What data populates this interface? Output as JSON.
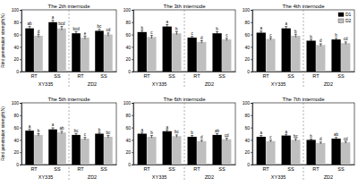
{
  "chart_data": [
    {
      "type": "bar",
      "title": "The 2th internode",
      "ylabel": "Rind penetration strength(N)",
      "categories": [
        "RT",
        "SS",
        "RT",
        "SS"
      ],
      "groups": [
        "XY335",
        "ZD2"
      ],
      "ylim": [
        0,
        100
      ],
      "yticks": [
        0,
        20,
        40,
        60,
        80,
        100
      ],
      "series": [
        {
          "name": "D1",
          "color": "#000000",
          "values": [
            70,
            80,
            62,
            66
          ],
          "errors": [
            3,
            3,
            2.5,
            2.5
          ],
          "letters": [
            "ab",
            "a",
            "bcd",
            "bc"
          ]
        },
        {
          "name": "D2",
          "color": "#bfbfbf",
          "values": [
            58,
            70,
            55,
            60
          ],
          "errors": [
            2.5,
            3,
            2.5,
            2.5
          ],
          "letters": [
            "d",
            "bcd",
            "e",
            "cd"
          ]
        }
      ]
    },
    {
      "type": "bar",
      "title": "The 3th internode",
      "categories": [
        "RT",
        "SS",
        "RT",
        "SS"
      ],
      "groups": [
        "XY335",
        "ZD2"
      ],
      "ylim": [
        0,
        100
      ],
      "yticks": [
        0,
        20,
        40,
        60,
        80,
        100
      ],
      "series": [
        {
          "name": "D1",
          "color": "#000000",
          "values": [
            64,
            73,
            55,
            62
          ],
          "errors": [
            2.5,
            3,
            2,
            2.5
          ],
          "letters": [
            "b",
            "a",
            "c",
            "b"
          ]
        },
        {
          "name": "D2",
          "color": "#bfbfbf",
          "values": [
            56,
            62,
            48,
            52
          ],
          "errors": [
            2.5,
            2.5,
            2,
            2
          ],
          "letters": [
            "c",
            "b",
            "d",
            "c"
          ]
        }
      ]
    },
    {
      "type": "bar",
      "title": "The 4th internode",
      "legend": "upper right",
      "categories": [
        "RT",
        "SS",
        "RT",
        "SS"
      ],
      "groups": [
        "XY335",
        "ZD2"
      ],
      "ylim": [
        0,
        100
      ],
      "yticks": [
        0,
        20,
        40,
        60,
        80,
        100
      ],
      "series": [
        {
          "name": "D1",
          "color": "#000000",
          "values": [
            63,
            70,
            50,
            52
          ],
          "errors": [
            2.5,
            3,
            2,
            2
          ],
          "letters": [
            "a",
            "a",
            "b",
            "b"
          ]
        },
        {
          "name": "D2",
          "color": "#bfbfbf",
          "values": [
            53,
            58,
            43,
            46
          ],
          "errors": [
            2,
            2.5,
            2,
            2
          ],
          "letters": [
            "c",
            "b",
            "d",
            "cd"
          ]
        }
      ]
    },
    {
      "type": "bar",
      "title": "The 5th internode",
      "ylabel": "Rind penetration strength(N)",
      "categories": [
        "RT",
        "SS",
        "RT",
        "SS"
      ],
      "groups": [
        "XY335",
        "ZD2"
      ],
      "ylim": [
        0,
        100
      ],
      "yticks": [
        0,
        20,
        40,
        60,
        80,
        100
      ],
      "series": [
        {
          "name": "D1",
          "color": "#000000",
          "values": [
            55,
            57,
            48,
            50
          ],
          "errors": [
            2.5,
            2.5,
            2,
            2
          ],
          "letters": [
            "a",
            "a",
            "bc",
            "b"
          ]
        },
        {
          "name": "D2",
          "color": "#bfbfbf",
          "values": [
            48,
            52,
            42,
            45
          ],
          "errors": [
            2,
            2,
            2,
            2
          ],
          "letters": [
            "b",
            "ab",
            "c",
            "bc"
          ]
        }
      ]
    },
    {
      "type": "bar",
      "title": "The 6th internode",
      "categories": [
        "RT",
        "SS",
        "RT",
        "SS"
      ],
      "groups": [
        "XY335",
        "ZD2"
      ],
      "ylim": [
        0,
        100
      ],
      "yticks": [
        0,
        20,
        40,
        60,
        80,
        100
      ],
      "series": [
        {
          "name": "D1",
          "color": "#000000",
          "values": [
            50,
            54,
            45,
            48
          ],
          "errors": [
            2,
            2.5,
            2,
            2
          ],
          "letters": [
            "a",
            "a",
            "b",
            "ab"
          ]
        },
        {
          "name": "D2",
          "color": "#bfbfbf",
          "values": [
            45,
            46,
            38,
            41
          ],
          "errors": [
            2,
            2,
            1.5,
            2
          ],
          "letters": [
            "b",
            "bc",
            "d",
            "cd"
          ]
        }
      ]
    },
    {
      "type": "bar",
      "title": "The 7th internode",
      "categories": [
        "RT",
        "SS",
        "RT",
        "SS"
      ],
      "groups": [
        "XY335",
        "ZD2"
      ],
      "ylim": [
        0,
        100
      ],
      "yticks": [
        0,
        20,
        40,
        60,
        80,
        100
      ],
      "series": [
        {
          "name": "D1",
          "color": "#000000",
          "values": [
            45,
            47,
            40,
            42
          ],
          "errors": [
            2,
            2,
            1.5,
            2
          ],
          "letters": [
            "a",
            "a",
            "b",
            "ab"
          ]
        },
        {
          "name": "D2",
          "color": "#bfbfbf",
          "values": [
            38,
            40,
            35,
            36
          ],
          "errors": [
            1.5,
            2,
            1.5,
            1.5
          ],
          "letters": [
            "c",
            "bc",
            "d",
            "cd"
          ]
        }
      ]
    }
  ]
}
